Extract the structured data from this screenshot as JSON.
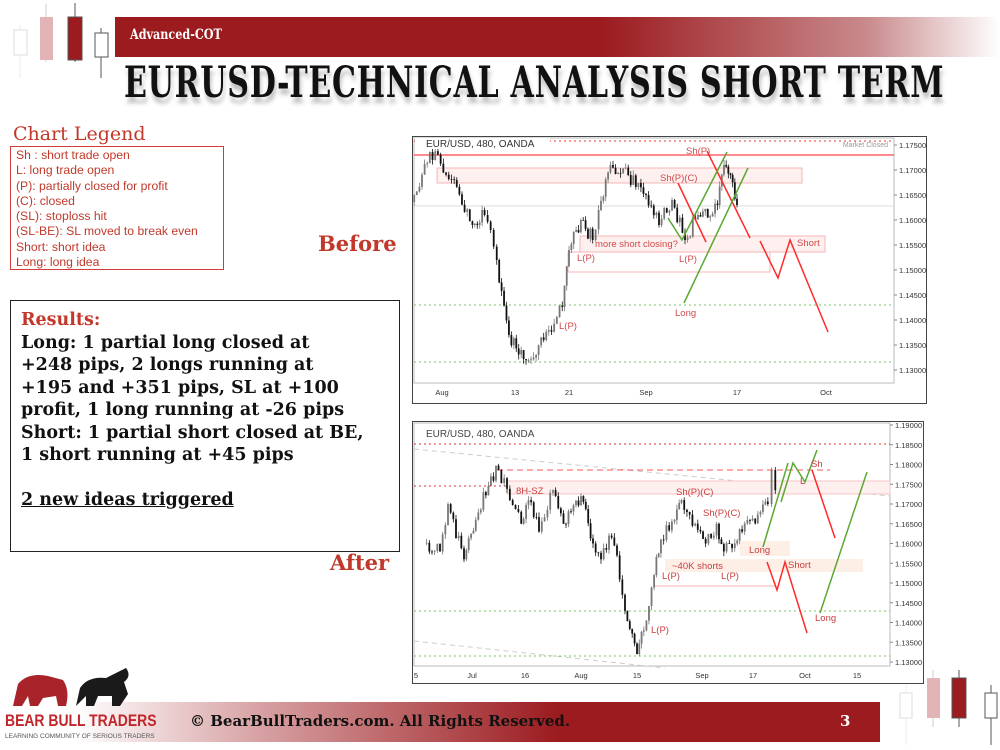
{
  "header": {
    "subtitle": "Advanced-COT",
    "title": "EURUSD-TECHNICAL ANALYSIS SHORT TERM"
  },
  "legend": {
    "title": "Chart Legend",
    "items": [
      "Sh : short trade open",
      "L: long trade open",
      "(P): partially closed for profit",
      "(C): closed",
      "(SL): stoploss hit",
      "(SL-BE): SL moved to break even",
      "Short: short idea",
      "Long: long idea"
    ]
  },
  "results": {
    "title": "Results:",
    "lines": [
      "Long: 1 partial long closed at",
      "+248 pips, 2 longs running at",
      "+195 and +351 pips, SL at +100",
      "profit, 1 long running at -26 pips",
      "Short: 1 partial short closed at BE,",
      "1 short running at +45 pips"
    ],
    "ideas": "2 new ideas triggered"
  },
  "labels": {
    "before": "Before",
    "after": "After"
  },
  "chart_before": {
    "symbol": "EUR/USD, 480, OANDA",
    "status": "Market Closed",
    "colors": {
      "short": "#ff2a2a",
      "long": "#5aa832",
      "zone": "#f4b6b6"
    },
    "y_ticks": [
      "1.17500",
      "1.17000",
      "1.16500",
      "1.16000",
      "1.15500",
      "1.15000",
      "1.14500",
      "1.14000",
      "1.13500",
      "1.13000"
    ],
    "y_values": [
      1.175,
      1.17,
      1.165,
      1.16,
      1.155,
      1.15,
      1.145,
      1.14,
      1.135,
      1.13
    ],
    "x_ticks": [
      {
        "label": "Aug",
        "date": "08-01"
      },
      {
        "label": "13",
        "date": "08-13"
      },
      {
        "label": "21",
        "date": "08-21"
      },
      {
        "label": "Sep",
        "date": "09-03"
      },
      {
        "label": "17",
        "date": "09-17"
      },
      {
        "label": "Oct",
        "date": "10-01"
      }
    ],
    "price_path": [
      [
        "07-27",
        1.1636
      ],
      [
        "07-30",
        1.1736
      ],
      [
        "08-03",
        1.168
      ],
      [
        "08-06",
        1.159
      ],
      [
        "08-08",
        1.161
      ],
      [
        "08-09",
        1.158
      ],
      [
        "08-10",
        1.152
      ],
      [
        "08-12",
        1.137
      ],
      [
        "08-15",
        1.132
      ],
      [
        "08-18",
        1.138
      ],
      [
        "08-20",
        1.1426
      ],
      [
        "08-21",
        1.154
      ],
      [
        "08-23",
        1.16
      ],
      [
        "08-25",
        1.156
      ],
      [
        "08-26",
        1.162
      ],
      [
        "08-28",
        1.171
      ],
      [
        "08-31",
        1.169
      ],
      [
        "09-03",
        1.165
      ],
      [
        "09-05",
        1.159
      ],
      [
        "09-07",
        1.164
      ],
      [
        "09-09",
        1.156
      ],
      [
        "09-11",
        1.161
      ],
      [
        "09-14",
        1.163
      ],
      [
        "09-15",
        1.171
      ],
      [
        "09-16",
        1.169
      ],
      [
        "09-17",
        1.163
      ]
    ],
    "annotations": [
      "Sh(P)",
      "Sh(P)(C)",
      "more short closing?",
      "Short",
      "L(P)",
      "L(P)",
      "Long",
      "L(P)"
    ]
  },
  "chart_after": {
    "symbol": "EUR/USD, 480, OANDA",
    "y_ticks": [
      "1.19000",
      "1.18500",
      "1.18000",
      "1.17500",
      "1.17000",
      "1.16500",
      "1.16000",
      "1.15500",
      "1.15000",
      "1.14500",
      "1.14000",
      "1.13500",
      "1.13000"
    ],
    "y_values": [
      1.19,
      1.185,
      1.18,
      1.175,
      1.17,
      1.165,
      1.16,
      1.155,
      1.15,
      1.145,
      1.14,
      1.135,
      1.13
    ],
    "x_ticks": [
      {
        "label": "5",
        "date": "06-25"
      },
      {
        "label": "Jul",
        "date": "07-02"
      },
      {
        "label": "16",
        "date": "07-16"
      },
      {
        "label": "Aug",
        "date": "08-01"
      },
      {
        "label": "15",
        "date": "08-15"
      },
      {
        "label": "Sep",
        "date": "09-03"
      },
      {
        "label": "17",
        "date": "09-17"
      },
      {
        "label": "Oct",
        "date": "10-01"
      },
      {
        "label": "15",
        "date": "10-15"
      }
    ],
    "price_path": [
      [
        "06-26",
        1.16
      ],
      [
        "06-28",
        1.158
      ],
      [
        "06-29",
        1.17
      ],
      [
        "07-01",
        1.156
      ],
      [
        "07-03",
        1.166
      ],
      [
        "07-07",
        1.177
      ],
      [
        "07-09",
        1.1786
      ],
      [
        "07-12",
        1.171
      ],
      [
        "07-15",
        1.165
      ],
      [
        "07-17",
        1.171
      ],
      [
        "07-20",
        1.163
      ],
      [
        "07-24",
        1.1735
      ],
      [
        "07-27",
        1.165
      ],
      [
        "08-01",
        1.172
      ],
      [
        "08-04",
        1.16
      ],
      [
        "08-06",
        1.156
      ],
      [
        "08-08",
        1.162
      ],
      [
        "08-10",
        1.157
      ],
      [
        "08-12",
        1.143
      ],
      [
        "08-15",
        1.132
      ],
      [
        "08-17",
        1.138
      ],
      [
        "08-20",
        1.152
      ],
      [
        "08-22",
        1.161
      ],
      [
        "08-26",
        1.166
      ],
      [
        "08-28",
        1.171
      ],
      [
        "09-01",
        1.165
      ],
      [
        "09-04",
        1.16
      ],
      [
        "09-07",
        1.165
      ],
      [
        "09-09",
        1.158
      ],
      [
        "09-12",
        1.16
      ],
      [
        "09-14",
        1.163
      ],
      [
        "09-19",
        1.168
      ],
      [
        "09-21",
        1.17
      ],
      [
        "09-22",
        1.1786
      ],
      [
        "09-23",
        1.1735
      ]
    ],
    "annotations": [
      "8H-SZ",
      "Sh(P)(C)",
      "Sh(P)(C)",
      "Long",
      "~40K shorts",
      "L(P)",
      "L(P)",
      "Short",
      "L(P)",
      "Sh",
      "L",
      "Long"
    ]
  },
  "footer": {
    "copyright": "© BearBullTraders.com. All Rights Reserved.",
    "page": "3"
  },
  "logo": {
    "name": "BEAR BULL TRADERS",
    "tagline": "LEARNING COMMUNITY OF SERIOUS TRADERS"
  }
}
